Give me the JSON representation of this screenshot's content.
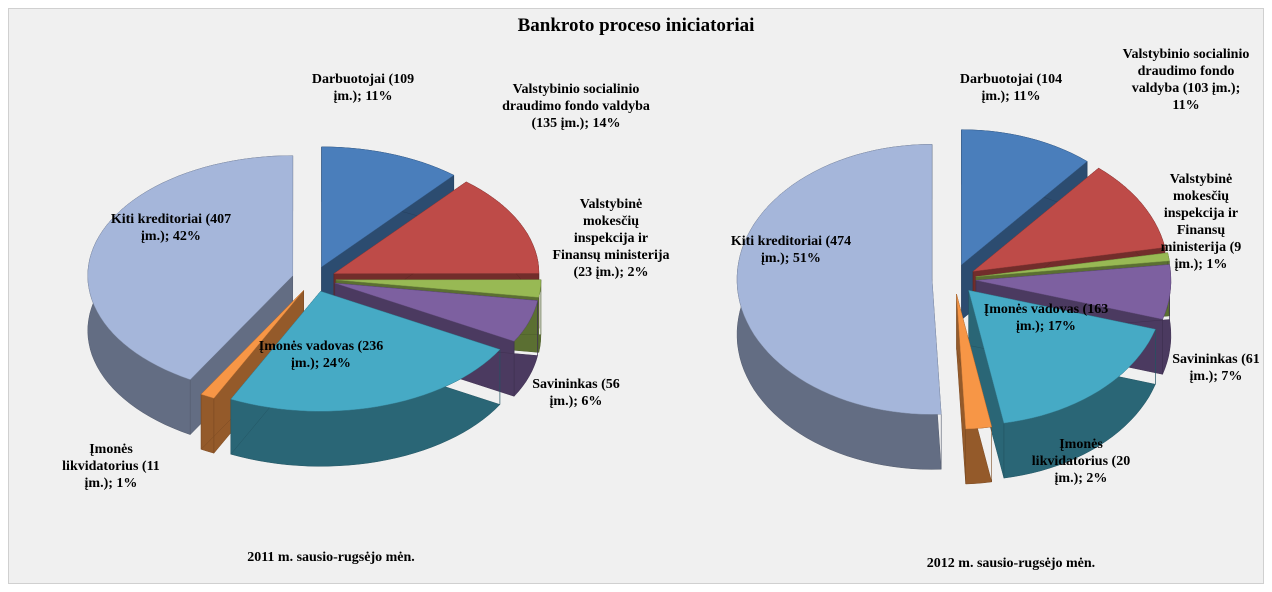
{
  "title": "Bankroto proceso iniciatoriai",
  "chart_data": [
    {
      "type": "pie",
      "subtitle": "2011 m. sausio-rugsėjo mėn.",
      "labels": [
        "Darbuotojai (109 įm.); 11%",
        "Valstybinio socialinio draudimo fondo valdyba (135 įm.); 14%",
        "Valstybinė mokesčių inspekcija ir Finansų ministerija (23 įm.); 2%",
        "Savininkas (56 įm.); 6%",
        "Įmonės vadovas (236 įm.); 24%",
        "Įmonės likvidatorius (11 įm.); 1%",
        "Kiti kreditoriai (407 įm.); 42%"
      ],
      "values": [
        109,
        135,
        23,
        56,
        236,
        11,
        407
      ],
      "colors": [
        "#4a7ebb",
        "#be4b48",
        "#98b954",
        "#7d60a0",
        "#46aac5",
        "#f79646",
        "#a5b6da"
      ]
    },
    {
      "type": "pie",
      "subtitle": "2012 m. sausio-rugsėjo mėn.",
      "labels": [
        "Darbuotojai (104 įm.); 11%",
        "Valstybinio socialinio draudimo fondo valdyba (103 įm.); 11%",
        "Valstybinė mokesčių inspekcija ir Finansų ministerija (9 įm.); 1%",
        "Savininkas (61 įm.); 7%",
        "Įmonės vadovas (163 įm.); 17%",
        "Įmonės likvidatorius (20 įm.); 2%",
        "Kiti kreditoriai (474 įm.); 51%"
      ],
      "values": [
        104,
        103,
        9,
        61,
        163,
        20,
        474
      ],
      "colors": [
        "#4a7ebb",
        "#be4b48",
        "#98b954",
        "#7d60a0",
        "#46aac5",
        "#f79646",
        "#a5b6da"
      ]
    }
  ]
}
